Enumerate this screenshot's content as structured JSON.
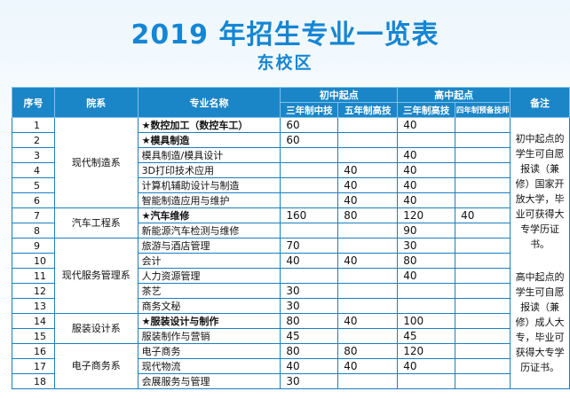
{
  "title": "2019 年招生专业一览表",
  "subtitle": "东校区",
  "header": {
    "idx": "序号",
    "dept": "院系",
    "major": "专业名称",
    "junior_group": "初中起点",
    "senior_group": "高中起点",
    "note": "备注",
    "j3": "三年制中技",
    "j5": "五年制高技",
    "s3": "三年制高技",
    "s4": "四年制预备技师"
  },
  "departments": {
    "d1": "现代制造系",
    "d2": "汽车工程系",
    "d3": "现代服务管理系",
    "d4": "服装设计系",
    "d5": "电子商务系"
  },
  "star": "★",
  "rows": [
    {
      "idx": "1",
      "major": "数控加工（数控车工）",
      "featured": true,
      "j3": "60",
      "j5": "",
      "s3": "40",
      "s4": ""
    },
    {
      "idx": "2",
      "major": "模具制造",
      "featured": true,
      "j3": "60",
      "j5": "",
      "s3": "",
      "s4": ""
    },
    {
      "idx": "3",
      "major": "模具制造/模具设计",
      "featured": false,
      "j3": "",
      "j5": "",
      "s3": "40",
      "s4": ""
    },
    {
      "idx": "4",
      "major": "3D打印技术应用",
      "featured": false,
      "j3": "",
      "j5": "40",
      "s3": "40",
      "s4": ""
    },
    {
      "idx": "5",
      "major": "计算机辅助设计与制造",
      "featured": false,
      "j3": "",
      "j5": "40",
      "s3": "40",
      "s4": ""
    },
    {
      "idx": "6",
      "major": "智能制造应用与维护",
      "featured": false,
      "j3": "",
      "j5": "40",
      "s3": "40",
      "s4": ""
    },
    {
      "idx": "7",
      "major": "汽车维修",
      "featured": true,
      "j3": "160",
      "j5": "80",
      "s3": "120",
      "s4": "40"
    },
    {
      "idx": "8",
      "major": "新能源汽车检测与维修",
      "featured": false,
      "j3": "",
      "j5": "",
      "s3": "90",
      "s4": ""
    },
    {
      "idx": "9",
      "major": "旅游与酒店管理",
      "featured": false,
      "j3": "70",
      "j5": "",
      "s3": "30",
      "s4": ""
    },
    {
      "idx": "10",
      "major": "会计",
      "featured": false,
      "j3": "40",
      "j5": "40",
      "s3": "80",
      "s4": ""
    },
    {
      "idx": "11",
      "major": "人力资源管理",
      "featured": false,
      "j3": "",
      "j5": "",
      "s3": "40",
      "s4": ""
    },
    {
      "idx": "12",
      "major": "茶艺",
      "featured": false,
      "j3": "30",
      "j5": "",
      "s3": "",
      "s4": ""
    },
    {
      "idx": "13",
      "major": "商务文秘",
      "featured": false,
      "j3": "30",
      "j5": "",
      "s3": "",
      "s4": ""
    },
    {
      "idx": "14",
      "major": "服装设计与制作",
      "featured": true,
      "j3": "80",
      "j5": "40",
      "s3": "100",
      "s4": ""
    },
    {
      "idx": "15",
      "major": "服装制作与营销",
      "featured": false,
      "j3": "45",
      "j5": "",
      "s3": "45",
      "s4": ""
    },
    {
      "idx": "16",
      "major": "电子商务",
      "featured": false,
      "j3": "80",
      "j5": "80",
      "s3": "120",
      "s4": ""
    },
    {
      "idx": "17",
      "major": "现代物流",
      "featured": false,
      "j3": "40",
      "j5": "40",
      "s3": "40",
      "s4": ""
    },
    {
      "idx": "18",
      "major": "会展服务与管理",
      "featured": false,
      "j3": "30",
      "j5": "",
      "s3": "",
      "s4": ""
    }
  ],
  "notes": [
    "初中起点的学生可自愿报读（兼修）国家开放大学，毕业可获得大专学历证书。",
    "高中起点的学生可自愿报读（兼修）成人大专，毕业可获得大专学历证书。"
  ]
}
